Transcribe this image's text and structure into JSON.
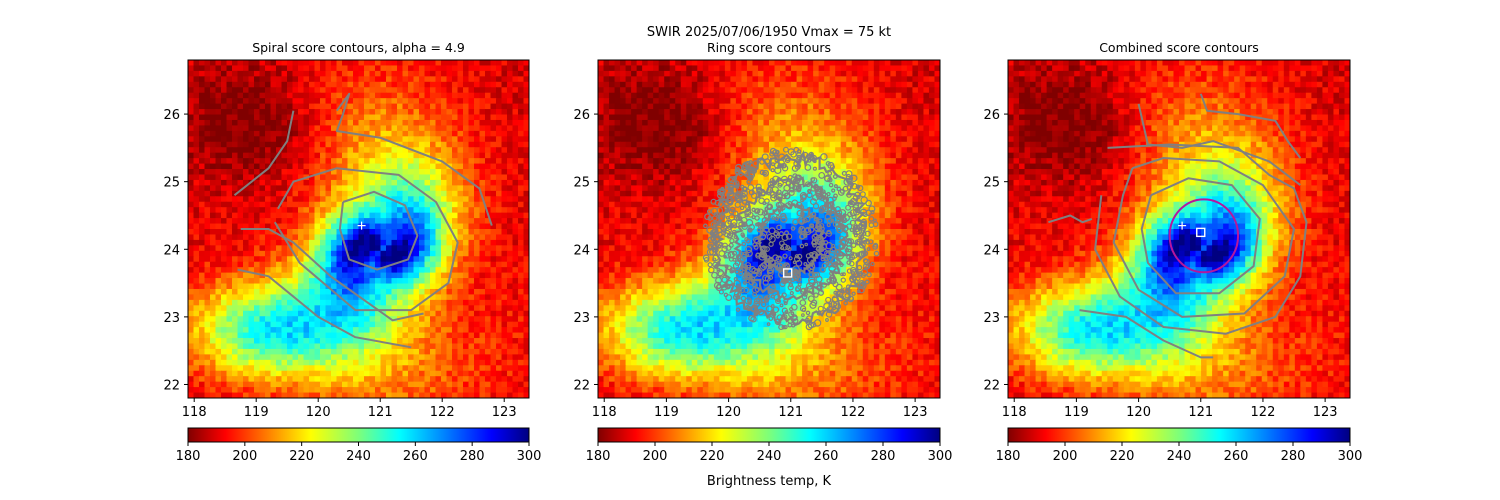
{
  "figure": {
    "suptitle_line1": "SWIR  2025/07/06/1950    Vmax = 75 kt",
    "colorbar_label": "Brightness temp, K"
  },
  "chart_data": [
    {
      "type": "heatmap",
      "title": "Spiral score contours, alpha =  4.9",
      "x_ticks": [
        "118",
        "119",
        "120",
        "121",
        "122",
        "123"
      ],
      "y_ticks": [
        "22",
        "23",
        "24",
        "25",
        "26"
      ],
      "xlim": [
        117.9,
        123.4
      ],
      "ylim": [
        21.8,
        26.8
      ],
      "contour_color": "#808080",
      "contours": [
        [
          [
            118.65,
            24.8
          ],
          [
            119.2,
            25.2
          ],
          [
            119.5,
            25.6
          ],
          [
            119.6,
            26.05
          ]
        ],
        [
          [
            121.7,
            23.05
          ],
          [
            121.2,
            22.95
          ],
          [
            120.2,
            23.6
          ],
          [
            119.6,
            24.1
          ],
          [
            119.2,
            24.3
          ],
          [
            118.75,
            24.3
          ]
        ],
        [
          [
            119.35,
            24.6
          ],
          [
            119.6,
            25
          ],
          [
            120.3,
            25.2
          ],
          [
            121.3,
            25.1
          ],
          [
            121.9,
            24.7
          ],
          [
            122.25,
            24.1
          ],
          [
            122.1,
            23.5
          ],
          [
            121.5,
            23.1
          ],
          [
            120.6,
            23.1
          ],
          [
            119.7,
            23.8
          ],
          [
            119.3,
            24.4
          ]
        ],
        [
          [
            120.4,
            24.7
          ],
          [
            120.9,
            24.85
          ],
          [
            121.4,
            24.65
          ],
          [
            121.6,
            24.2
          ],
          [
            121.45,
            23.85
          ],
          [
            120.95,
            23.7
          ],
          [
            120.5,
            23.85
          ],
          [
            120.35,
            24.3
          ],
          [
            120.4,
            24.7
          ]
        ],
        [
          [
            120.3,
            26.05
          ],
          [
            120.5,
            26.3
          ],
          [
            120.4,
            26
          ],
          [
            120.3,
            25.75
          ],
          [
            121,
            25.65
          ],
          [
            122,
            25.3
          ],
          [
            122.6,
            24.9
          ],
          [
            122.8,
            24.35
          ]
        ],
        [
          [
            118.7,
            23.7
          ],
          [
            119.2,
            23.6
          ],
          [
            120,
            23
          ],
          [
            120.6,
            22.7
          ],
          [
            121.5,
            22.55
          ]
        ]
      ],
      "markers": [
        {
          "kind": "plus",
          "lon": 120.7,
          "lat": 24.35
        }
      ],
      "colorbar": {
        "ticks": [
          "180",
          "200",
          "220",
          "240",
          "260",
          "280",
          "300"
        ],
        "vmin": 180,
        "vmax": 300
      }
    },
    {
      "type": "heatmap",
      "title": "Ring score contours",
      "x_ticks": [
        "118",
        "119",
        "120",
        "121",
        "122",
        "123"
      ],
      "y_ticks": [
        "22",
        "23",
        "24",
        "25",
        "26"
      ],
      "xlim": [
        117.9,
        123.4
      ],
      "ylim": [
        21.8,
        26.8
      ],
      "contour_color": "#808080",
      "ring_field": {
        "center": [
          121.0,
          24.15
        ],
        "radii": [
          0.5,
          0.85,
          1.2
        ],
        "outer_radius": 1.4
      },
      "markers": [
        {
          "kind": "square",
          "lon": 120.95,
          "lat": 23.65
        }
      ],
      "colorbar": {
        "ticks": [
          "180",
          "200",
          "220",
          "240",
          "260",
          "280",
          "300"
        ],
        "vmin": 180,
        "vmax": 300
      }
    },
    {
      "type": "heatmap",
      "title": "Combined score contours",
      "x_ticks": [
        "118",
        "119",
        "120",
        "121",
        "122",
        "123"
      ],
      "y_ticks": [
        "22",
        "23",
        "24",
        "25",
        "26"
      ],
      "xlim": [
        117.9,
        123.4
      ],
      "ylim": [
        21.8,
        26.8
      ],
      "contour_color": "#808080",
      "contours": [
        [
          [
            119.9,
            25.2
          ],
          [
            120.4,
            25.35
          ],
          [
            121.3,
            25.3
          ],
          [
            122,
            24.95
          ],
          [
            122.5,
            24.3
          ],
          [
            122.35,
            23.6
          ],
          [
            121.7,
            23.05
          ],
          [
            120.7,
            23
          ],
          [
            120,
            23.4
          ],
          [
            119.6,
            24.1
          ],
          [
            119.75,
            24.8
          ],
          [
            119.9,
            25.2
          ]
        ],
        [
          [
            120.2,
            24.8
          ],
          [
            120.8,
            25.05
          ],
          [
            121.5,
            24.95
          ],
          [
            121.95,
            24.45
          ],
          [
            121.85,
            23.75
          ],
          [
            121.3,
            23.35
          ],
          [
            120.6,
            23.35
          ],
          [
            120.15,
            23.8
          ],
          [
            120.05,
            24.3
          ],
          [
            120.2,
            24.8
          ]
        ],
        [
          [
            119.5,
            25.5
          ],
          [
            120.5,
            25.55
          ],
          [
            121.6,
            25.5
          ],
          [
            122.1,
            25.1
          ],
          [
            122.5,
            24.9
          ],
          [
            122.7,
            24.4
          ],
          [
            122.6,
            23.6
          ],
          [
            122.2,
            23
          ],
          [
            121.4,
            22.75
          ],
          [
            120.4,
            22.85
          ],
          [
            119.7,
            23.3
          ],
          [
            119.3,
            24
          ],
          [
            119.4,
            24.8
          ]
        ],
        [
          [
            118.55,
            24.4
          ],
          [
            118.9,
            24.5
          ],
          [
            119.1,
            24.4
          ],
          [
            119.25,
            24.45
          ]
        ],
        [
          [
            120.0,
            26.15
          ],
          [
            120.15,
            25.55
          ],
          [
            120.7,
            25.5
          ],
          [
            121.2,
            25.6
          ],
          [
            122.1,
            25.3
          ],
          [
            122.6,
            24.95
          ]
        ],
        [
          [
            121.0,
            26.3
          ],
          [
            121.1,
            26.05
          ],
          [
            121.6,
            26
          ],
          [
            122.2,
            25.9
          ],
          [
            122.4,
            25.6
          ],
          [
            122.6,
            25.35
          ]
        ],
        [
          [
            119.05,
            23.1
          ],
          [
            119.8,
            23
          ],
          [
            120.4,
            22.65
          ],
          [
            121.0,
            22.4
          ],
          [
            121.2,
            22.4
          ]
        ]
      ],
      "highlight_circle": {
        "center": [
          121.05,
          24.2
        ],
        "radius": 0.55,
        "color": "#b5179e"
      },
      "markers": [
        {
          "kind": "plus",
          "lon": 120.7,
          "lat": 24.35
        },
        {
          "kind": "square",
          "lon": 121.0,
          "lat": 24.25
        }
      ],
      "colorbar": {
        "ticks": [
          "180",
          "200",
          "220",
          "240",
          "260",
          "280",
          "300"
        ],
        "vmin": 180,
        "vmax": 300
      }
    }
  ]
}
